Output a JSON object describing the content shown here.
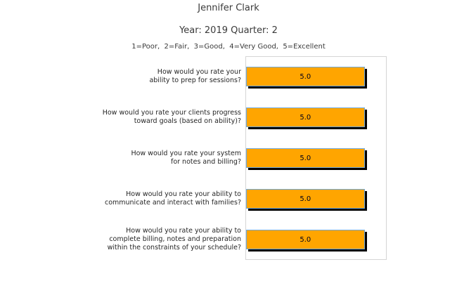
{
  "chart_data": {
    "type": "bar",
    "orientation": "horizontal",
    "title": "Jennifer Clark",
    "subtitle": "Year: 2019 Quarter: 2",
    "scale_note": "1=Poor,  2=Fair,  3=Good,  4=Very Good,  5=Excellent",
    "categories": [
      "How would you rate your\nability to prep for sessions?",
      "How would you rate your clients progress\ntoward goals (based on ability)?",
      "How would you rate your system\nfor notes and billing?",
      "How would you rate your ability to\ncommunicate and interact with families?",
      "How would you rate your ability to\ncomplete billing, notes and preparation\nwithin the constraints of your schedule?"
    ],
    "values": [
      5.0,
      5.0,
      5.0,
      5.0,
      5.0
    ],
    "value_labels": [
      "5.0",
      "5.0",
      "5.0",
      "5.0",
      "5.0"
    ],
    "xlim": [
      0,
      6
    ],
    "grid": false,
    "legend_position": "none",
    "colors": {
      "bar_fill": "#FFA500",
      "bar_border": "#6FA8DC",
      "bar_shadow": "#000000",
      "value_text": "#00001A",
      "plot_border": "#D5D5D5",
      "heading_text": "#3A3A3A",
      "label_text": "#262626"
    }
  }
}
